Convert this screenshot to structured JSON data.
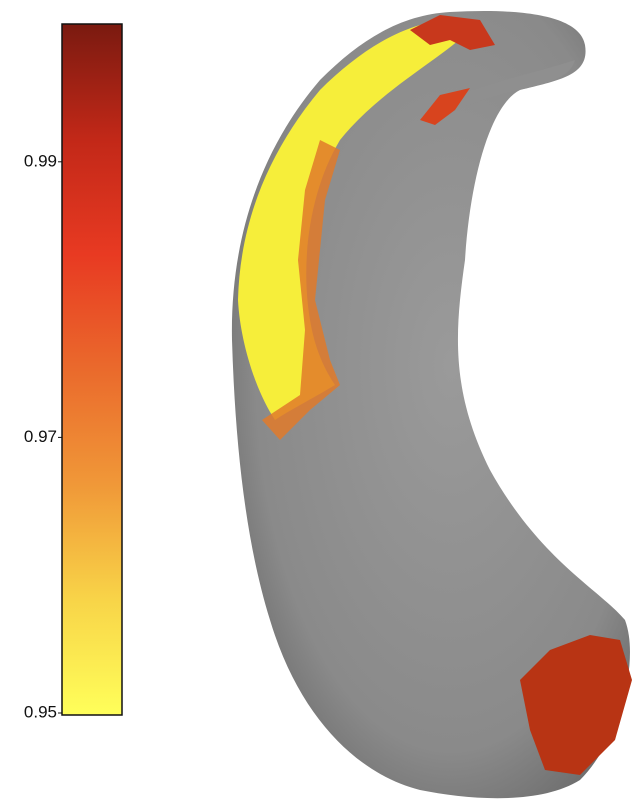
{
  "chart_data": {
    "type": "colorbar",
    "ylim": [
      0.95,
      1.0
    ],
    "yticks": [
      0.95,
      0.97,
      0.99
    ],
    "colormap": [
      "#ffff5a",
      "#f8d448",
      "#f09838",
      "#ea6a2c",
      "#e83a22",
      "#c22818",
      "#7a1a10"
    ]
  }
}
